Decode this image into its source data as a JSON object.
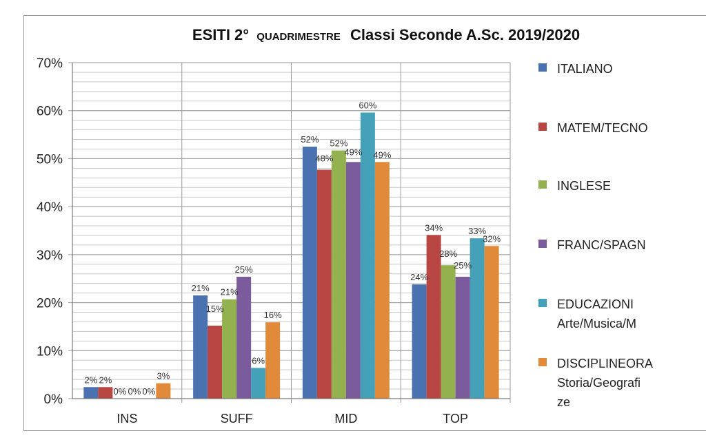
{
  "chart_data": {
    "type": "bar",
    "title": {
      "part1": "ESITI 2°",
      "part2": "QUADRIMESTRE",
      "part3": "Classi Seconde A.Sc. 2019/2020"
    },
    "categories": [
      "INS",
      "SUFF",
      "MID",
      "TOP"
    ],
    "ylim": [
      0,
      0.7
    ],
    "yticks": [
      "0%",
      "10%",
      "20%",
      "30%",
      "40%",
      "50%",
      "60%",
      "70%"
    ],
    "grid": true,
    "legend_position": "right",
    "series": [
      {
        "name": "ITALIANO",
        "color": "#4a72b0",
        "values": [
          0.024,
          0.215,
          0.525,
          0.238
        ],
        "labels": [
          "2%",
          "21%",
          "52%",
          "24%"
        ]
      },
      {
        "name": "MATEM/TECNO",
        "color": "#b84643",
        "values": [
          0.024,
          0.152,
          0.477,
          0.341
        ],
        "labels": [
          "2%",
          "15%",
          "48%",
          "34%"
        ]
      },
      {
        "name": "INGLESE",
        "color": "#93b24f",
        "values": [
          0.0,
          0.207,
          0.517,
          0.278
        ],
        "labels": [
          "0%",
          "21%",
          "52%",
          "28%"
        ]
      },
      {
        "name": "FRANC/SPAGN",
        "color": "#7b5b9c",
        "values": [
          0.0,
          0.254,
          0.493,
          0.254
        ],
        "labels": [
          "0%",
          "25%",
          "49%",
          "25%"
        ]
      },
      {
        "name": "EDUCAZIONI Arte/Musica/M",
        "color": "#44a1b8",
        "values": [
          0.0,
          0.064,
          0.596,
          0.334
        ],
        "labels": [
          "0%",
          "6%",
          "60%",
          "33%"
        ]
      },
      {
        "name": "DISCIPLINEORA Storia/Geografi ze",
        "color": "#e08a3a",
        "values": [
          0.032,
          0.159,
          0.493,
          0.318
        ],
        "labels": [
          "3%",
          "16%",
          "49%",
          "32%"
        ]
      }
    ],
    "legend_lines": [
      [
        "ITALIANO"
      ],
      [
        "MATEM/TECNO"
      ],
      [
        "INGLESE"
      ],
      [
        "FRANC/SPAGN"
      ],
      [
        "EDUCAZIONI",
        "Arte/Musica/M"
      ],
      [
        "DISCIPLINEORA",
        "Storia/Geografi",
        "ze"
      ]
    ]
  }
}
